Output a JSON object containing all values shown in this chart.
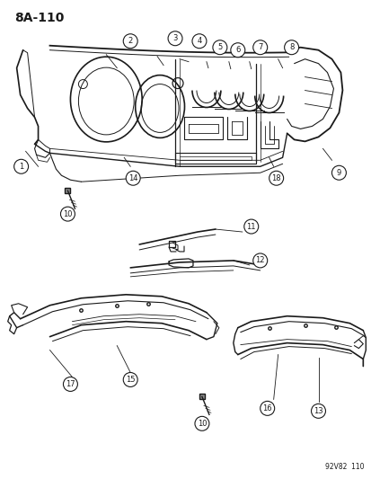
{
  "title": "8A-110",
  "background_color": "#ffffff",
  "line_color": "#1a1a1a",
  "figure_width": 4.14,
  "figure_height": 5.33,
  "dpi": 100,
  "watermark": "92V82  110"
}
